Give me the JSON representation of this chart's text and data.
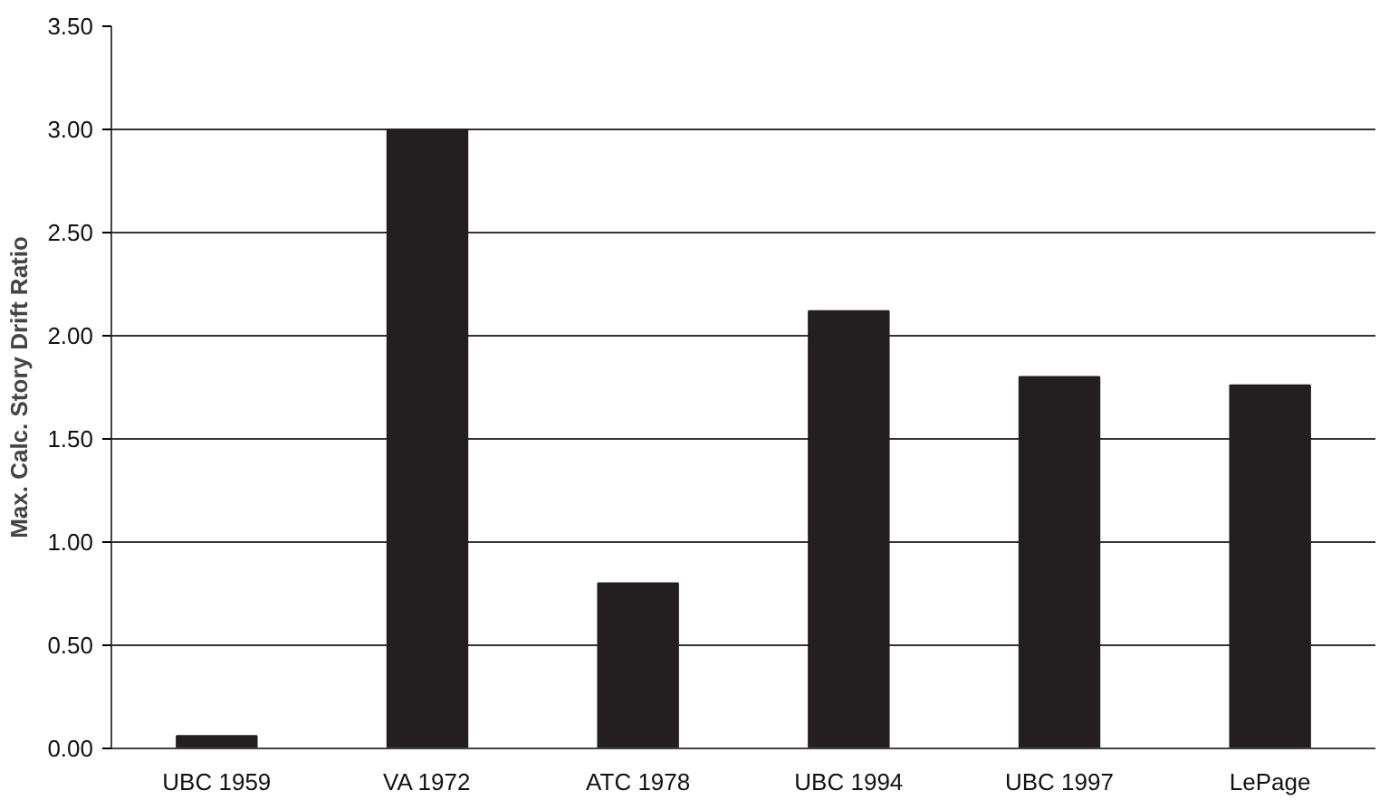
{
  "chart_data": {
    "type": "bar",
    "ylabel": "Max. Calc. Story Drift Ratio",
    "categories": [
      "UBC 1959",
      "VA 1972",
      "ATC 1978",
      "UBC 1994",
      "UBC 1997",
      "LePage"
    ],
    "values": [
      0.06,
      3.0,
      0.8,
      2.12,
      1.8,
      1.76
    ],
    "color": "#231f20",
    "ylim": [
      0,
      3.5
    ],
    "yticks": [
      {
        "value": 0,
        "label": "0.00"
      },
      {
        "value": 0.5,
        "label": "0.50"
      },
      {
        "value": 1,
        "label": "1.00"
      },
      {
        "value": 1.5,
        "label": "1.50"
      },
      {
        "value": 2,
        "label": "2.00"
      },
      {
        "value": 2.5,
        "label": "2.50"
      },
      {
        "value": 3,
        "label": "3.00"
      },
      {
        "value": 3.5,
        "label": "3.50"
      }
    ],
    "grid": "y"
  }
}
